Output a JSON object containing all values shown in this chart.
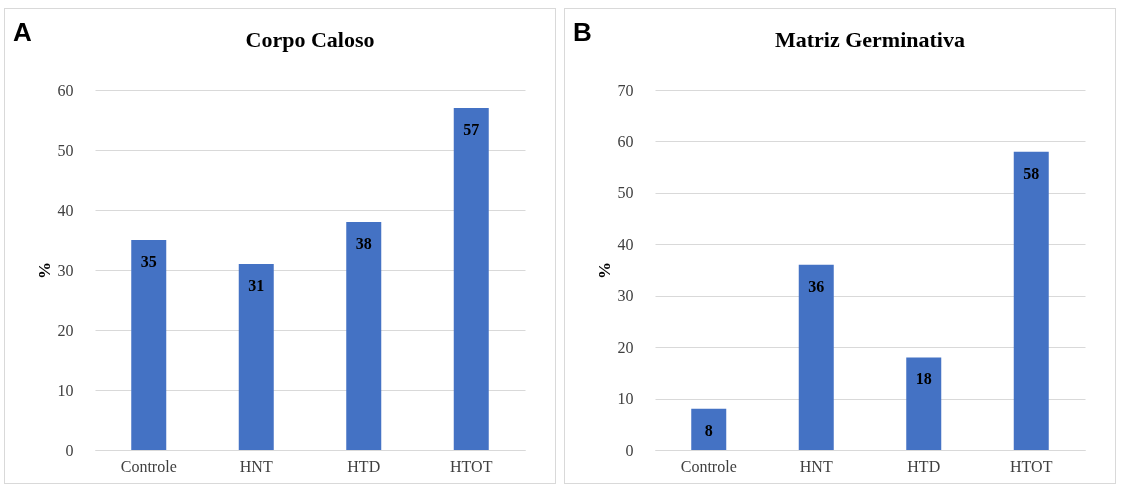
{
  "chart_data": [
    {
      "type": "bar",
      "title": "Corpo Caloso",
      "ylabel": "%",
      "annotations": [
        "A"
      ],
      "categories": [
        "Controle",
        "HNT",
        "HTD",
        "HTOT"
      ],
      "values": [
        35,
        31,
        38,
        57
      ],
      "color": "#4472c4",
      "ylim": [
        0,
        60
      ],
      "yticks": [
        0,
        10,
        20,
        30,
        40,
        50,
        60
      ],
      "grid": "y",
      "data_labels": true
    },
    {
      "type": "bar",
      "title": "Matriz Germinativa",
      "ylabel": "%",
      "annotations": [
        "B"
      ],
      "categories": [
        "Controle",
        "HNT",
        "HTD",
        "HTOT"
      ],
      "values": [
        8,
        36,
        18,
        58
      ],
      "color": "#4472c4",
      "ylim": [
        0,
        70
      ],
      "yticks": [
        0,
        10,
        20,
        30,
        40,
        50,
        60,
        70
      ],
      "grid": "y",
      "data_labels": true
    }
  ]
}
